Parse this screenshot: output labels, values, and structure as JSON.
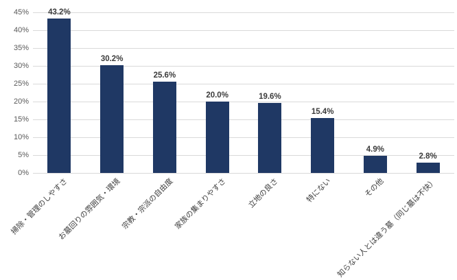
{
  "chart_data": {
    "type": "bar",
    "title": "",
    "xlabel": "",
    "ylabel": "",
    "categories": [
      "掃除・管理のしやすさ",
      "お墓回りの雰囲気・環境",
      "宗教・宗派の自由度",
      "家族の集まりやすさ",
      "立地の良さ",
      "特にない",
      "その他",
      "知らない人とは違う墓（同じ墓は不快）"
    ],
    "values": [
      43.2,
      30.2,
      25.6,
      20.0,
      19.6,
      15.4,
      4.9,
      2.8
    ],
    "value_labels": [
      "43.2%",
      "30.2%",
      "25.6%",
      "20.0%",
      "19.6%",
      "15.4%",
      "4.9%",
      "2.8%"
    ],
    "ylim": [
      0,
      45
    ],
    "ytick_step": 5,
    "yticks": [
      "0%",
      "5%",
      "10%",
      "15%",
      "20%",
      "25%",
      "30%",
      "35%",
      "40%",
      "45%"
    ],
    "grid": "horizontal",
    "legend_position": "none",
    "colors": {
      "bar": "#1f3864",
      "gridline": "#d9d9d9",
      "axis_text": "#595959",
      "value_label_text": "#3b3b3b",
      "category_text": "#404040",
      "background": "#ffffff"
    }
  }
}
